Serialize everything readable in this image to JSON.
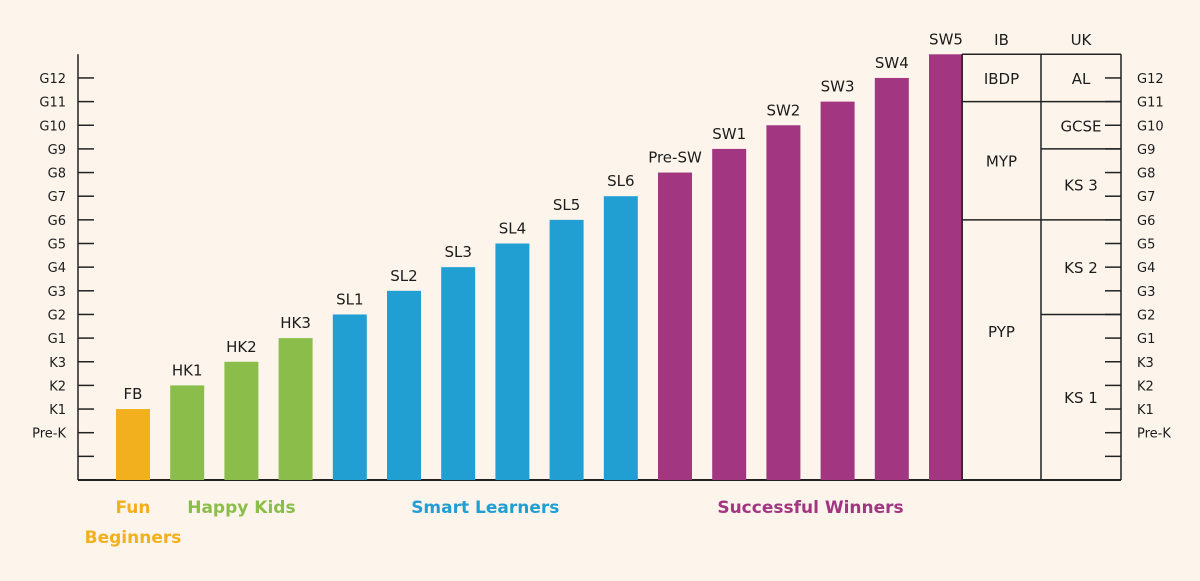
{
  "chart_data": {
    "type": "bar",
    "title": "",
    "levels": [
      "",
      "",
      "Pre-K",
      "K1",
      "K2",
      "K3",
      "G1",
      "G2",
      "G3",
      "G4",
      "G5",
      "G6",
      "G7",
      "G8",
      "G9",
      "G10",
      "G11",
      "G12"
    ],
    "categories": [
      "FB",
      "HK1",
      "HK2",
      "HK3",
      "SL1",
      "SL2",
      "SL3",
      "SL4",
      "SL5",
      "SL6",
      "Pre-SW",
      "SW1",
      "SW2",
      "SW3",
      "SW4",
      "SW5"
    ],
    "values": [
      3,
      4,
      5,
      6,
      7,
      8,
      9,
      10,
      11,
      12,
      13,
      14,
      15,
      16,
      17,
      18
    ],
    "groups": [
      {
        "name": "Fun Beginners",
        "lines": [
          "Fun",
          "Beginners"
        ],
        "color": "#f2b01e",
        "members": [
          "FB"
        ]
      },
      {
        "name": "Happy Kids",
        "lines": [
          "Happy Kids"
        ],
        "color": "#8bbd4a",
        "members": [
          "HK1",
          "HK2",
          "HK3"
        ]
      },
      {
        "name": "Smart Learners",
        "lines": [
          "Smart Learners"
        ],
        "color": "#219fd3",
        "members": [
          "SL1",
          "SL2",
          "SL3",
          "SL4",
          "SL5",
          "SL6"
        ]
      },
      {
        "name": "Successful Winners",
        "lines": [
          "Successful Winners"
        ],
        "color": "#a23680",
        "members": [
          "Pre-SW",
          "SW1",
          "SW2",
          "SW3",
          "SW4",
          "SW5"
        ]
      }
    ],
    "ylim": [
      0,
      18
    ],
    "curricula": [
      {
        "name": "IB",
        "bands": [
          {
            "label": "IBDP",
            "from": 16,
            "to": 18
          },
          {
            "label": "MYP",
            "from": 11,
            "to": 16
          },
          {
            "label": "PYP",
            "from": 0,
            "to": 11
          }
        ]
      },
      {
        "name": "UK",
        "bands": [
          {
            "label": "AL",
            "from": 16,
            "to": 18
          },
          {
            "label": "GCSE",
            "from": 14,
            "to": 16
          },
          {
            "label": "KS 3",
            "from": 11,
            "to": 14
          },
          {
            "label": "KS 2",
            "from": 7,
            "to": 11
          },
          {
            "label": "KS 1",
            "from": 0,
            "to": 7
          }
        ]
      }
    ]
  }
}
